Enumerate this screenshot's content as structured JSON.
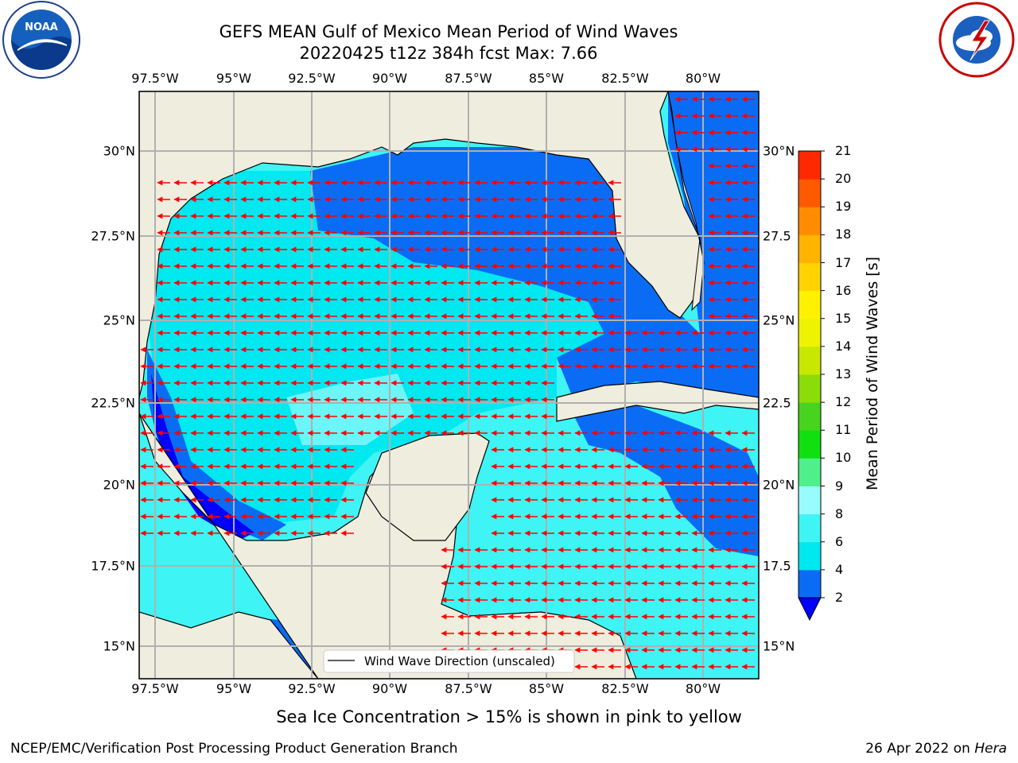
{
  "title": {
    "line1": "GEFS MEAN Gulf of Mexico Mean Period of Wind Waves",
    "line2": "20220425 t12z 384h fcst   Max: 7.66"
  },
  "logos": {
    "noaa": {
      "text": "NOAA",
      "ring_text": "NATIONAL OCEANIC AND ATMOSPHERIC ADMINISTRATION · U.S. DEPARTMENT OF COMMERCE"
    },
    "nws": {
      "ring_text": "NATIONAL WEATHER SERVICE"
    }
  },
  "map": {
    "lon_ticks": [
      "97.5°W",
      "95°W",
      "92.5°W",
      "90°W",
      "87.5°W",
      "85°W",
      "82.5°W",
      "80°W"
    ],
    "lat_ticks": [
      "30°N",
      "27.5°N",
      "25°N",
      "22.5°N",
      "20°N",
      "17.5°N",
      "15°N"
    ],
    "lat_ticks_right": [
      "30°N",
      "27.5",
      "25°N",
      "22.5",
      "20°N",
      "17.5",
      "15°N"
    ],
    "legend": "Wind Wave Direction (unscaled)",
    "colors": {
      "land": "#efedde",
      "coast": "#000000",
      "grid": "#b0b0b0",
      "arrow": "#ff0000"
    }
  },
  "colorbar": {
    "title": "Mean Period of Wind Waves [s]",
    "levels": [
      "2",
      "4",
      "6",
      "8",
      "9",
      "10",
      "11",
      "12",
      "13",
      "14",
      "15",
      "16",
      "17",
      "18",
      "19",
      "20",
      "21"
    ],
    "colors": [
      "#0a6cf5",
      "#00e8f0",
      "#3ff4f4",
      "#99fcfc",
      "#4ff08c",
      "#10e010",
      "#46d41e",
      "#8cdc0a",
      "#c8e800",
      "#eef400",
      "#fff200",
      "#ffd200",
      "#ffb400",
      "#ff8c00",
      "#ff5a00",
      "#ff2800"
    ],
    "under_color": "#0000ff"
  },
  "subtitle": "Sea Ice Concentration > 15% is shown in pink to yellow",
  "footer": {
    "left": "NCEP/EMC/Verification Post Processing Product Generation Branch",
    "right_prefix": "26 Apr 2022 on ",
    "right_host": "Hera"
  }
}
